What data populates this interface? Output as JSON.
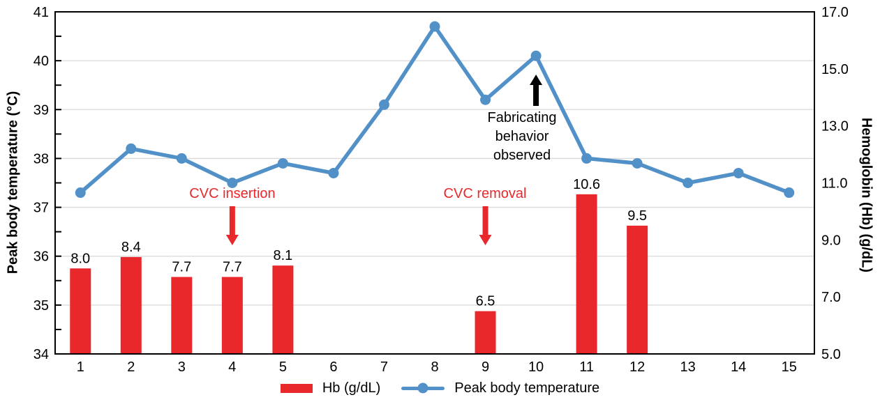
{
  "chart_data": {
    "type": "combo-bar-line",
    "categories": [
      "1",
      "2",
      "3",
      "4",
      "5",
      "6",
      "7",
      "8",
      "9",
      "10",
      "11",
      "12",
      "13",
      "14",
      "15"
    ],
    "series": [
      {
        "name": "Hb (g/dL)",
        "type": "bar",
        "axis": "right",
        "color": "#E8282B",
        "data_labels": true,
        "values": [
          8.0,
          8.4,
          7.7,
          7.7,
          8.1,
          null,
          null,
          null,
          6.5,
          null,
          10.6,
          9.5,
          null,
          null,
          null
        ]
      },
      {
        "name": "Peak body temperature",
        "type": "line",
        "axis": "left",
        "color": "#5291C8",
        "values": [
          37.3,
          38.2,
          38.0,
          37.5,
          37.9,
          37.7,
          39.1,
          40.7,
          39.2,
          40.1,
          38.0,
          37.9,
          37.5,
          37.7,
          37.3
        ]
      }
    ],
    "left_axis": {
      "label": "Peak body temperature (°C)",
      "min": 34,
      "max": 41,
      "ticks": [
        "34",
        "35",
        "36",
        "37",
        "38",
        "39",
        "40",
        "41"
      ],
      "minor_tick_step": 0.5
    },
    "right_axis": {
      "label": "Hemoglobin (Hb) (g/dL)",
      "min": 5.0,
      "max": 17.0,
      "ticks": [
        "5.0",
        "7.0",
        "9.0",
        "11.0",
        "13.0",
        "15.0",
        "17.0"
      ]
    },
    "grid": {
      "horizontal": true,
      "color": "#D9D9D9"
    },
    "legend_position": "bottom",
    "annotations": [
      {
        "text": "CVC insertion",
        "color": "#E8282B",
        "arrow": "down",
        "at_category": "4"
      },
      {
        "text": "CVC removal",
        "color": "#E8282B",
        "arrow": "down",
        "at_category": "9"
      },
      {
        "text": "Fabricating behavior observed",
        "color": "#000000",
        "arrow": "up",
        "at_category": "10"
      }
    ]
  },
  "legend": {
    "items": [
      {
        "label": "Hb (g/dL)",
        "swatch": "bar"
      },
      {
        "label": "Peak body temperature",
        "swatch": "line-dot"
      }
    ]
  },
  "colors": {
    "bar_red": "#E8282B",
    "line_blue": "#5291C8",
    "grid": "#D9D9D9",
    "axis": "#000000",
    "background": "#FFFFFF"
  }
}
